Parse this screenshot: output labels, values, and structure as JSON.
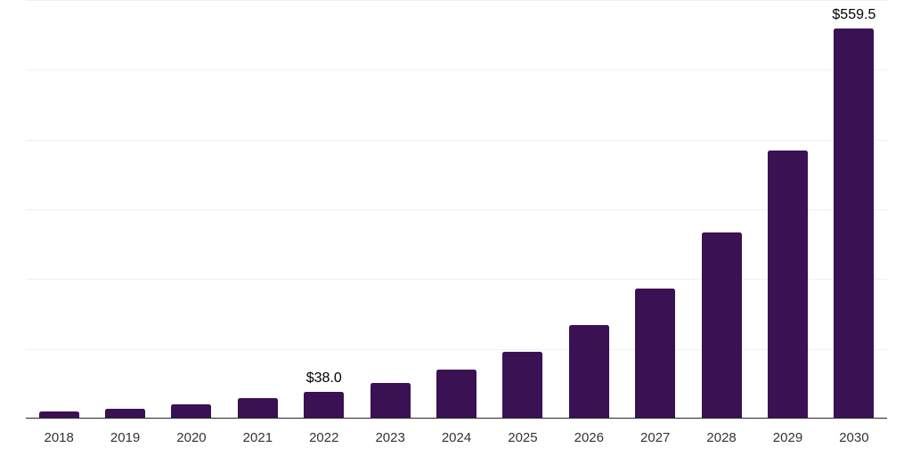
{
  "chart_data": {
    "type": "bar",
    "categories": [
      "2018",
      "2019",
      "2020",
      "2021",
      "2022",
      "2023",
      "2024",
      "2025",
      "2026",
      "2027",
      "2028",
      "2029",
      "2030"
    ],
    "values": [
      10.2,
      14.0,
      20.0,
      29.0,
      38.0,
      51.1,
      70.2,
      95.4,
      134.4,
      186.4,
      267.2,
      384.3,
      559.5
    ],
    "data_labels": {
      "2022": "$38.0",
      "2030": "$559.5"
    },
    "title": "",
    "xlabel": "",
    "ylabel": "",
    "ylim": [
      0,
      600
    ],
    "gridline_values": [
      100,
      200,
      300,
      400,
      500,
      600
    ],
    "grid": true,
    "legend": false,
    "colors": {
      "bar": "#3a1153",
      "gridline": "#f0f0f0",
      "axis_line": "#262626",
      "tick_label": "#333333",
      "data_label": "#000000",
      "background": "#ffffff"
    }
  }
}
